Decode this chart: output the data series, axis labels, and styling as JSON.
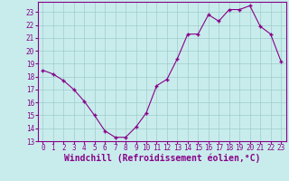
{
  "x": [
    0,
    1,
    2,
    3,
    4,
    5,
    6,
    7,
    8,
    9,
    10,
    11,
    12,
    13,
    14,
    15,
    16,
    17,
    18,
    19,
    20,
    21,
    22,
    23
  ],
  "y": [
    18.5,
    18.2,
    17.7,
    17.0,
    16.1,
    15.0,
    13.8,
    13.3,
    13.3,
    14.1,
    15.2,
    17.3,
    17.8,
    19.4,
    21.3,
    21.3,
    22.8,
    22.3,
    23.2,
    23.2,
    23.5,
    21.9,
    21.3,
    19.2
  ],
  "line_color": "#880088",
  "marker_color": "#880088",
  "bg_color": "#c8ecec",
  "grid_color": "#a0cccc",
  "xlabel": "Windchill (Refroidissement éolien,°C)",
  "ylim": [
    13,
    23.8
  ],
  "xlim": [
    -0.5,
    23.5
  ],
  "yticks": [
    13,
    14,
    15,
    16,
    17,
    18,
    19,
    20,
    21,
    22,
    23
  ],
  "xticks": [
    0,
    1,
    2,
    3,
    4,
    5,
    6,
    7,
    8,
    9,
    10,
    11,
    12,
    13,
    14,
    15,
    16,
    17,
    18,
    19,
    20,
    21,
    22,
    23
  ],
  "tick_fontsize": 5.5,
  "label_fontsize": 7.0,
  "spine_color": "#880088"
}
